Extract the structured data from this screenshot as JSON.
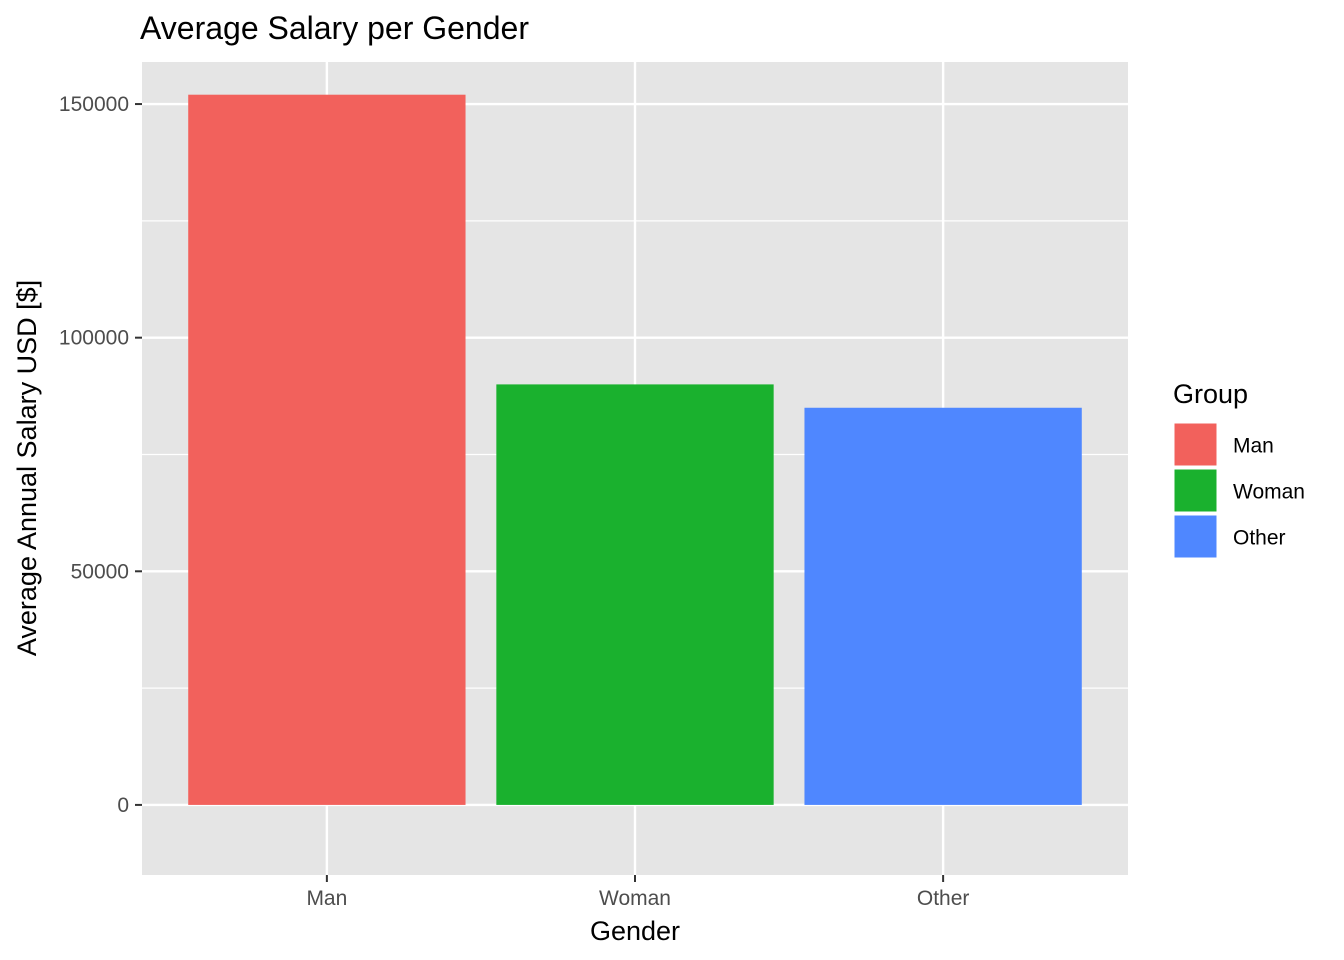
{
  "chart_data": {
    "type": "bar",
    "title": "Average Salary per Gender",
    "xlabel": "Gender",
    "ylabel": "Average Annual Salary USD [$]",
    "categories": [
      "Man",
      "Woman",
      "Other"
    ],
    "values": [
      152000,
      90000,
      85000
    ],
    "colors": [
      "#F2615C",
      "#1AB12E",
      "#4F87FF"
    ],
    "ylim": [
      -15000,
      159000
    ],
    "yticks": [
      0,
      50000,
      100000,
      150000
    ],
    "ytick_labels": [
      "0",
      "50000",
      "100000",
      "150000"
    ],
    "grid": true,
    "panel_background": "#E5E5E5",
    "grid_color": "#FFFFFF",
    "legend": {
      "title": "Group",
      "placement": "right",
      "entries": [
        "Man",
        "Woman",
        "Other"
      ]
    }
  }
}
